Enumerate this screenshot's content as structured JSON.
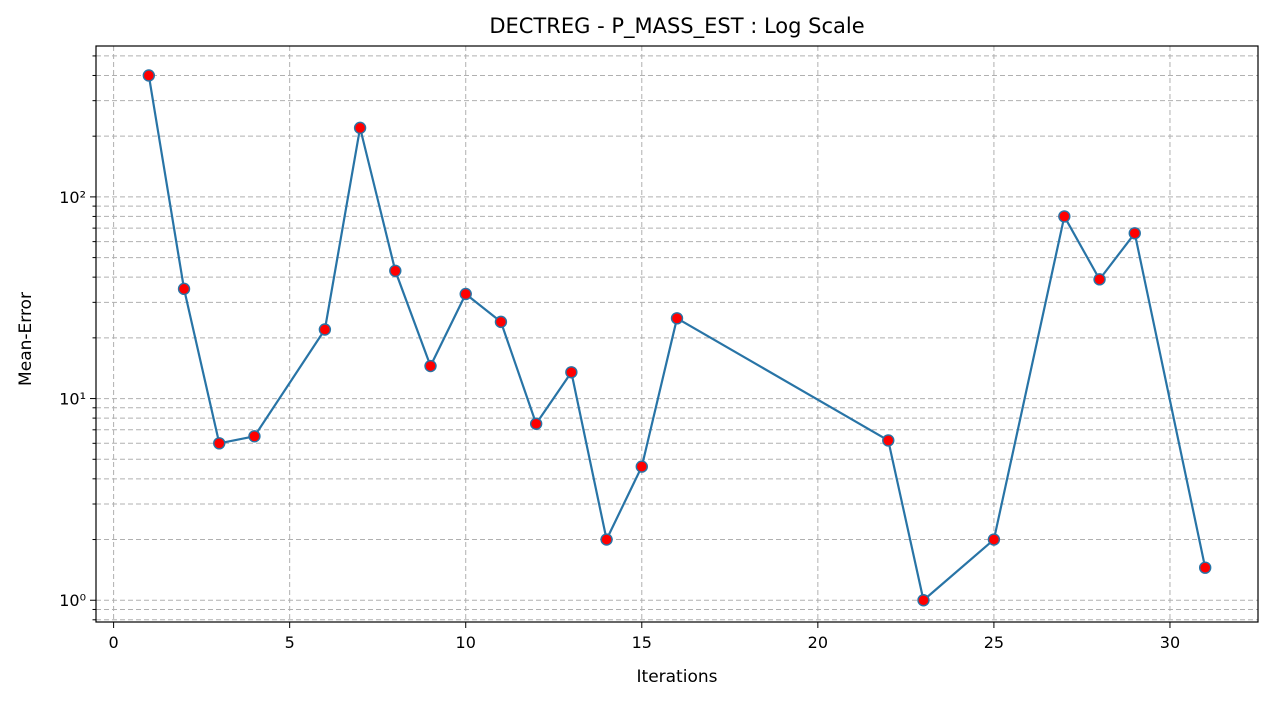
{
  "chart_data": {
    "type": "line",
    "title": "DECTREG - P_MASS_EST : Log Scale",
    "xlabel": "Iterations",
    "ylabel": "Mean-Error",
    "yscale": "log",
    "grid": true,
    "grid_minor": true,
    "xlim": [
      -0.5,
      32.5
    ],
    "ylim": [
      0.78,
      560
    ],
    "xticks": [
      0,
      5,
      10,
      15,
      20,
      25,
      30
    ],
    "xtick_labels": [
      "0",
      "5",
      "10",
      "15",
      "20",
      "25",
      "30"
    ],
    "yticks": [
      1,
      10,
      100
    ],
    "ytick_labels": [
      "10⁰",
      "10¹",
      "10²"
    ],
    "line_color": "#2874a6",
    "marker_color": "#ff0000",
    "x": [
      1,
      2,
      3,
      4,
      6,
      7,
      8,
      9,
      10,
      11,
      12,
      13,
      14,
      15,
      16,
      22,
      23,
      25,
      27,
      28,
      29,
      31
    ],
    "y": [
      400,
      35,
      6.0,
      6.5,
      22,
      220,
      43,
      14.5,
      33,
      24,
      7.5,
      13.5,
      2.0,
      4.6,
      25,
      6.2,
      1.0,
      2.0,
      80,
      39,
      66,
      1.45
    ]
  }
}
